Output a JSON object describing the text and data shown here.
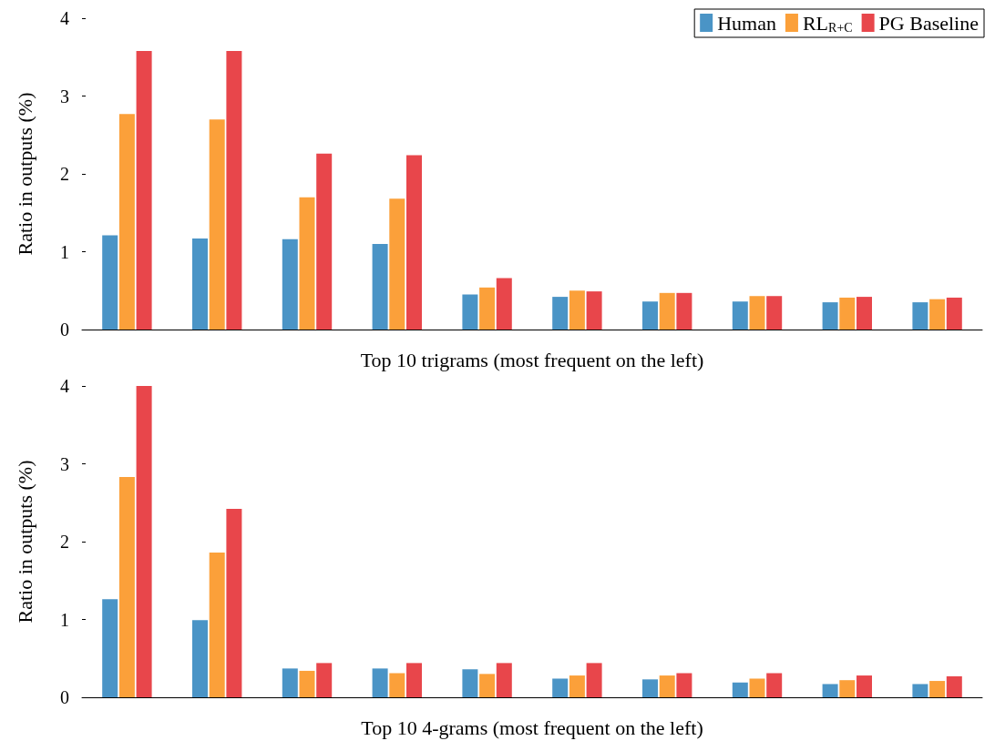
{
  "chart_data": [
    {
      "type": "bar",
      "xlabel": "Top 10 trigrams (most frequent on the left)",
      "ylabel": "Ratio in outputs (%)",
      "categories": [
        null,
        null,
        null,
        null,
        null,
        null,
        null,
        null,
        null,
        null
      ],
      "ylim": [
        0,
        4
      ],
      "yticks": [
        0,
        1,
        2,
        3,
        4
      ],
      "grid": false,
      "legend": "top right",
      "series": [
        {
          "name": "Human",
          "color": "#4a94c6",
          "values": [
            1.21,
            1.17,
            1.16,
            1.1,
            0.45,
            0.42,
            0.36,
            0.36,
            0.35,
            0.35
          ]
        },
        {
          "name": "RL$_{R+C}$",
          "color": "#fba03a",
          "values": [
            2.77,
            2.7,
            1.7,
            1.68,
            0.54,
            0.5,
            0.47,
            0.43,
            0.41,
            0.39
          ]
        },
        {
          "name": "PG Baseline",
          "color": "#e8464b",
          "values": [
            3.58,
            3.58,
            2.26,
            2.24,
            0.66,
            0.49,
            0.47,
            0.43,
            0.42,
            0.41
          ]
        }
      ]
    },
    {
      "type": "bar",
      "xlabel": "Top 10 4-grams (most frequent on the left)",
      "ylabel": "Ratio in outputs (%)",
      "categories": [
        null,
        null,
        null,
        null,
        null,
        null,
        null,
        null,
        null,
        null
      ],
      "ylim": [
        0,
        4
      ],
      "yticks": [
        0,
        1,
        2,
        3,
        4
      ],
      "grid": false,
      "legend": false,
      "series": [
        {
          "color": "#4a94c6",
          "values": [
            1.26,
            0.99,
            0.37,
            0.37,
            0.36,
            0.24,
            0.23,
            0.19,
            0.17,
            0.17
          ]
        },
        {
          "color": "#fba03a",
          "values": [
            2.83,
            1.86,
            0.34,
            0.31,
            0.3,
            0.28,
            0.28,
            0.24,
            0.22,
            0.21
          ]
        },
        {
          "color": "#e8464b",
          "values": [
            4.0,
            2.42,
            0.44,
            0.44,
            0.44,
            0.44,
            0.31,
            0.31,
            0.28,
            0.27
          ]
        }
      ]
    }
  ]
}
